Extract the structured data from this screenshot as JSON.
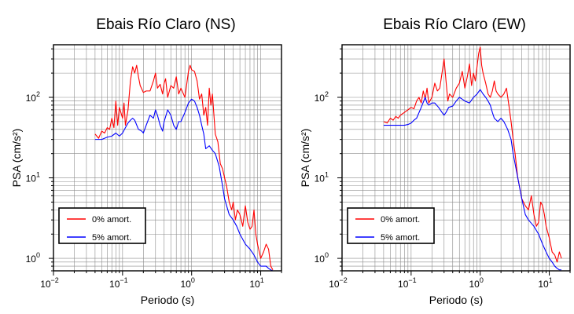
{
  "chart_data": [
    {
      "type": "line",
      "title": "Ebais Río Claro (NS)",
      "xlabel": "Periodo (s)",
      "ylabel": "PSA (cm/s²)",
      "xscale": "log",
      "yscale": "log",
      "xlim": [
        0.01,
        20
      ],
      "ylim": [
        0.7,
        450
      ],
      "grid": true,
      "legend_position": "bottom-left",
      "xticks": [
        "10",
        "10",
        "10",
        "10"
      ],
      "xtick_exponents": [
        "−2",
        "−1",
        "0",
        "1"
      ],
      "yticks": [
        "10",
        "10",
        "10"
      ],
      "ytick_exponents": [
        "0",
        "1",
        "2"
      ],
      "series": [
        {
          "name": "0% amort.",
          "color": "#ff0000",
          "points": [
            [
              0.04,
              35
            ],
            [
              0.045,
              31
            ],
            [
              0.05,
              38
            ],
            [
              0.055,
              36
            ],
            [
              0.06,
              42
            ],
            [
              0.065,
              40
            ],
            [
              0.07,
              55
            ],
            [
              0.075,
              42
            ],
            [
              0.08,
              90
            ],
            [
              0.085,
              45
            ],
            [
              0.09,
              75
            ],
            [
              0.1,
              55
            ],
            [
              0.105,
              85
            ],
            [
              0.11,
              45
            ],
            [
              0.12,
              70
            ],
            [
              0.13,
              160
            ],
            [
              0.14,
              240
            ],
            [
              0.15,
              200
            ],
            [
              0.16,
              250
            ],
            [
              0.17,
              180
            ],
            [
              0.18,
              140
            ],
            [
              0.2,
              115
            ],
            [
              0.22,
              120
            ],
            [
              0.25,
              120
            ],
            [
              0.28,
              160
            ],
            [
              0.3,
              200
            ],
            [
              0.32,
              130
            ],
            [
              0.35,
              145
            ],
            [
              0.38,
              110
            ],
            [
              0.4,
              150
            ],
            [
              0.42,
              170
            ],
            [
              0.45,
              100
            ],
            [
              0.5,
              140
            ],
            [
              0.55,
              130
            ],
            [
              0.6,
              180
            ],
            [
              0.65,
              110
            ],
            [
              0.7,
              130
            ],
            [
              0.8,
              100
            ],
            [
              0.9,
              210
            ],
            [
              0.95,
              250
            ],
            [
              1.0,
              220
            ],
            [
              1.1,
              210
            ],
            [
              1.2,
              160
            ],
            [
              1.3,
              95
            ],
            [
              1.4,
              110
            ],
            [
              1.5,
              60
            ],
            [
              1.6,
              75
            ],
            [
              1.7,
              45
            ],
            [
              1.8,
              130
            ],
            [
              1.9,
              80
            ],
            [
              2.0,
              110
            ],
            [
              2.2,
              35
            ],
            [
              2.4,
              28
            ],
            [
              2.6,
              15
            ],
            [
              2.8,
              13
            ],
            [
              3.0,
              10
            ],
            [
              3.2,
              8
            ],
            [
              3.5,
              5
            ],
            [
              3.8,
              4
            ],
            [
              4.0,
              5
            ],
            [
              4.3,
              3
            ],
            [
              4.6,
              4
            ],
            [
              5.0,
              3.5
            ],
            [
              5.5,
              2.5
            ],
            [
              6.0,
              4.5
            ],
            [
              6.5,
              2.8
            ],
            [
              7.0,
              2.3
            ],
            [
              7.5,
              2.5
            ],
            [
              8.0,
              4.0
            ],
            [
              8.5,
              2.0
            ],
            [
              9.0,
              1.5
            ],
            [
              10.0,
              1.0
            ],
            [
              11.0,
              1.2
            ],
            [
              12.0,
              1.5
            ],
            [
              13.0,
              1.3
            ],
            [
              14.0,
              0.8
            ],
            [
              15.0,
              0.72
            ]
          ]
        },
        {
          "name": "5% amort.",
          "color": "#0000ff",
          "points": [
            [
              0.04,
              30
            ],
            [
              0.05,
              30
            ],
            [
              0.06,
              32
            ],
            [
              0.07,
              33
            ],
            [
              0.08,
              36
            ],
            [
              0.09,
              33
            ],
            [
              0.1,
              36
            ],
            [
              0.11,
              42
            ],
            [
              0.12,
              48
            ],
            [
              0.13,
              52
            ],
            [
              0.14,
              55
            ],
            [
              0.15,
              52
            ],
            [
              0.17,
              40
            ],
            [
              0.19,
              38
            ],
            [
              0.2,
              36
            ],
            [
              0.22,
              45
            ],
            [
              0.25,
              60
            ],
            [
              0.28,
              55
            ],
            [
              0.3,
              70
            ],
            [
              0.32,
              60
            ],
            [
              0.35,
              45
            ],
            [
              0.38,
              38
            ],
            [
              0.4,
              50
            ],
            [
              0.45,
              70
            ],
            [
              0.5,
              60
            ],
            [
              0.55,
              45
            ],
            [
              0.6,
              40
            ],
            [
              0.65,
              50
            ],
            [
              0.7,
              50
            ],
            [
              0.8,
              65
            ],
            [
              0.9,
              85
            ],
            [
              1.0,
              95
            ],
            [
              1.1,
              90
            ],
            [
              1.2,
              75
            ],
            [
              1.3,
              60
            ],
            [
              1.4,
              45
            ],
            [
              1.5,
              35
            ],
            [
              1.6,
              23
            ],
            [
              1.8,
              25
            ],
            [
              2.0,
              22
            ],
            [
              2.2,
              20
            ],
            [
              2.5,
              14
            ],
            [
              2.8,
              8
            ],
            [
              3.0,
              5.5
            ],
            [
              3.5,
              3.5
            ],
            [
              4.0,
              3.0
            ],
            [
              4.5,
              2.5
            ],
            [
              5.0,
              2.0
            ],
            [
              6.0,
              1.5
            ],
            [
              7.0,
              1.3
            ],
            [
              8.0,
              1.1
            ],
            [
              9.0,
              0.9
            ],
            [
              10.0,
              0.8
            ],
            [
              11.0,
              0.8
            ],
            [
              12.0,
              0.8
            ],
            [
              13.0,
              0.75
            ],
            [
              14.0,
              0.72
            ],
            [
              15.0,
              0.7
            ]
          ]
        }
      ]
    },
    {
      "type": "line",
      "title": "Ebais Río Claro (EW)",
      "xlabel": "Periodo (s)",
      "ylabel": "PSA (cm/s²)",
      "xscale": "log",
      "yscale": "log",
      "xlim": [
        0.01,
        20
      ],
      "ylim": [
        0.7,
        450
      ],
      "grid": true,
      "legend_position": "bottom-left",
      "xticks": [
        "10",
        "10",
        "10",
        "10"
      ],
      "xtick_exponents": [
        "−2",
        "−1",
        "0",
        "1"
      ],
      "yticks": [
        "10",
        "10",
        "10"
      ],
      "ytick_exponents": [
        "0",
        "1",
        "2"
      ],
      "series": [
        {
          "name": "0% amort.",
          "color": "#ff0000",
          "points": [
            [
              0.04,
              50
            ],
            [
              0.045,
              48
            ],
            [
              0.05,
              55
            ],
            [
              0.055,
              52
            ],
            [
              0.06,
              58
            ],
            [
              0.065,
              55
            ],
            [
              0.07,
              60
            ],
            [
              0.08,
              65
            ],
            [
              0.09,
              70
            ],
            [
              0.1,
              75
            ],
            [
              0.11,
              72
            ],
            [
              0.12,
              90
            ],
            [
              0.13,
              100
            ],
            [
              0.14,
              85
            ],
            [
              0.15,
              120
            ],
            [
              0.16,
              95
            ],
            [
              0.17,
              130
            ],
            [
              0.18,
              85
            ],
            [
              0.2,
              100
            ],
            [
              0.22,
              150
            ],
            [
              0.24,
              120
            ],
            [
              0.26,
              130
            ],
            [
              0.28,
              200
            ],
            [
              0.3,
              300
            ],
            [
              0.32,
              160
            ],
            [
              0.34,
              90
            ],
            [
              0.36,
              110
            ],
            [
              0.4,
              100
            ],
            [
              0.45,
              130
            ],
            [
              0.5,
              150
            ],
            [
              0.55,
              210
            ],
            [
              0.6,
              130
            ],
            [
              0.65,
              180
            ],
            [
              0.7,
              260
            ],
            [
              0.75,
              140
            ],
            [
              0.8,
              200
            ],
            [
              0.85,
              160
            ],
            [
              0.9,
              240
            ],
            [
              0.95,
              350
            ],
            [
              1.0,
              420
            ],
            [
              1.05,
              250
            ],
            [
              1.1,
              200
            ],
            [
              1.2,
              150
            ],
            [
              1.3,
              110
            ],
            [
              1.4,
              100
            ],
            [
              1.5,
              120
            ],
            [
              1.6,
              160
            ],
            [
              1.7,
              120
            ],
            [
              1.8,
              110
            ],
            [
              2.0,
              100
            ],
            [
              2.2,
              110
            ],
            [
              2.4,
              130
            ],
            [
              2.6,
              80
            ],
            [
              2.8,
              50
            ],
            [
              3.0,
              30
            ],
            [
              3.2,
              20
            ],
            [
              3.5,
              10
            ],
            [
              3.8,
              7
            ],
            [
              4.0,
              5.5
            ],
            [
              4.5,
              4.5
            ],
            [
              5.0,
              4
            ],
            [
              5.5,
              6
            ],
            [
              6.0,
              3.5
            ],
            [
              6.5,
              2.5
            ],
            [
              7.0,
              2.8
            ],
            [
              7.5,
              5
            ],
            [
              8.0,
              4.5
            ],
            [
              8.5,
              3.5
            ],
            [
              9.0,
              2.5
            ],
            [
              10.0,
              1.8
            ],
            [
              11.0,
              1.2
            ],
            [
              12.0,
              1.1
            ],
            [
              13.0,
              0.9
            ],
            [
              14.0,
              1.2
            ],
            [
              15.0,
              1.0
            ]
          ]
        },
        {
          "name": "5% amort.",
          "color": "#0000ff",
          "points": [
            [
              0.04,
              45
            ],
            [
              0.05,
              45
            ],
            [
              0.06,
              45
            ],
            [
              0.07,
              45
            ],
            [
              0.08,
              45
            ],
            [
              0.09,
              46
            ],
            [
              0.1,
              48
            ],
            [
              0.11,
              52
            ],
            [
              0.12,
              55
            ],
            [
              0.14,
              75
            ],
            [
              0.16,
              100
            ],
            [
              0.17,
              85
            ],
            [
              0.18,
              80
            ],
            [
              0.2,
              85
            ],
            [
              0.22,
              85
            ],
            [
              0.25,
              75
            ],
            [
              0.28,
              65
            ],
            [
              0.3,
              60
            ],
            [
              0.32,
              65
            ],
            [
              0.35,
              75
            ],
            [
              0.4,
              78
            ],
            [
              0.45,
              90
            ],
            [
              0.5,
              100
            ],
            [
              0.55,
              95
            ],
            [
              0.6,
              90
            ],
            [
              0.7,
              85
            ],
            [
              0.8,
              100
            ],
            [
              0.9,
              110
            ],
            [
              1.0,
              125
            ],
            [
              1.1,
              110
            ],
            [
              1.2,
              100
            ],
            [
              1.3,
              90
            ],
            [
              1.4,
              80
            ],
            [
              1.5,
              65
            ],
            [
              1.6,
              55
            ],
            [
              1.8,
              50
            ],
            [
              2.0,
              55
            ],
            [
              2.2,
              50
            ],
            [
              2.5,
              40
            ],
            [
              2.8,
              30
            ],
            [
              3.0,
              20
            ],
            [
              3.5,
              10
            ],
            [
              4.0,
              5.5
            ],
            [
              4.5,
              3.5
            ],
            [
              5.0,
              3.0
            ],
            [
              6.0,
              2.5
            ],
            [
              7.0,
              2.0
            ],
            [
              8.0,
              1.5
            ],
            [
              9.0,
              1.2
            ],
            [
              10.0,
              1.0
            ],
            [
              11.0,
              0.9
            ],
            [
              12.0,
              0.8
            ],
            [
              13.0,
              0.75
            ],
            [
              14.0,
              0.72
            ],
            [
              15.0,
              0.72
            ]
          ]
        }
      ]
    }
  ]
}
